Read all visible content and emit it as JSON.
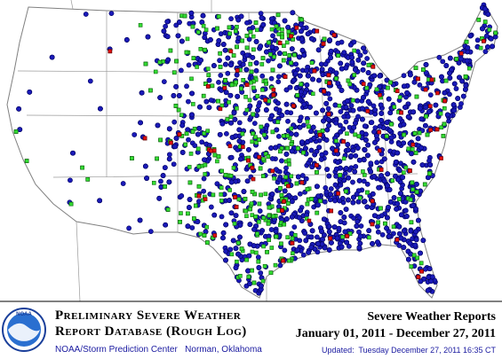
{
  "logo": {
    "label": "NOAA"
  },
  "footer": {
    "title_line1": "Preliminary Severe Weather",
    "title_line2": "Report Database (Rough Log)",
    "source": "NOAA/Storm Prediction Center   Norman, Oklahoma",
    "heading": "Severe Weather Reports",
    "period": "January 01, 2011 - December 27, 2011",
    "updated": "Updated:  Tuesday December 27, 2011 16:35 CT"
  }
}
